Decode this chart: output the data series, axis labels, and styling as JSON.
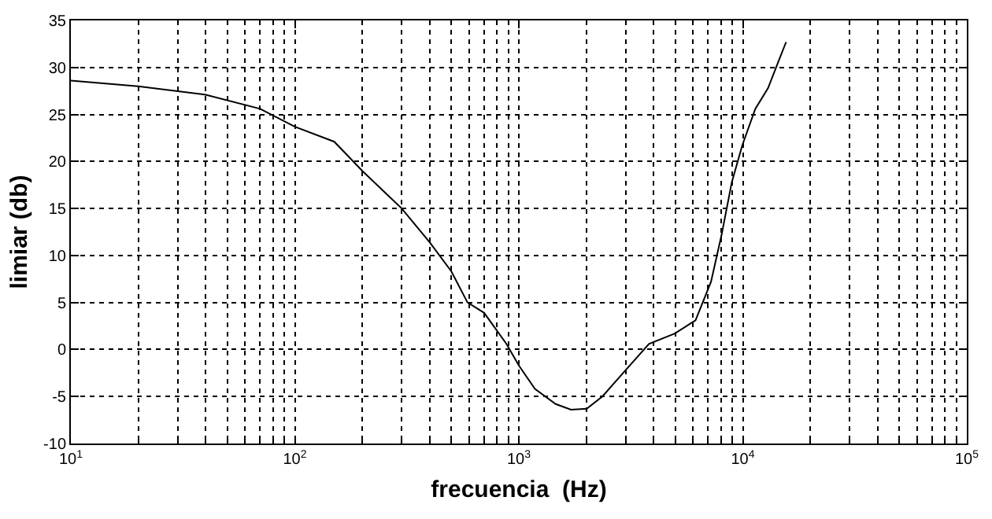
{
  "chart_data": {
    "type": "line",
    "xlabel": "frecuencia  (Hz)",
    "ylabel": "limiar (db)",
    "log": "x",
    "grid": true,
    "marker": "none",
    "line_style": "solid",
    "x": [
      10,
      20,
      40,
      70,
      100,
      150,
      200,
      300,
      400,
      500,
      590,
      700,
      880,
      1000,
      1180,
      1460,
      1710,
      2010,
      2360,
      2920,
      3810,
      4970,
      6150,
      7210,
      8040,
      8930,
      9940,
      11370,
      12960,
      14400,
      15600
    ],
    "series": [
      {
        "color": "#000000",
        "values": [
          28.6,
          28.0,
          27.1,
          25.6,
          23.7,
          22.1,
          19.0,
          15.0,
          11.4,
          8.3,
          5.0,
          3.9,
          0.6,
          -1.7,
          -4.2,
          -5.8,
          -6.4,
          -6.3,
          -5.0,
          -2.5,
          0.6,
          1.7,
          3.1,
          7.2,
          12.2,
          17.8,
          21.7,
          25.6,
          27.8,
          30.6,
          32.7
        ]
      }
    ],
    "xlim": [
      10,
      100000
    ],
    "ylim": [
      -10,
      35
    ],
    "xticks": [
      {
        "value": 10,
        "label": "10$^{1}$"
      },
      {
        "value": 100,
        "label": "10$^{2}$"
      },
      {
        "value": 1000,
        "label": "10$^{3}$"
      },
      {
        "value": 10000,
        "label": "10$^{4}$"
      },
      {
        "value": 100000,
        "label": "10$^{5}$"
      }
    ],
    "yticks": [
      -10,
      -5,
      0,
      5,
      10,
      15,
      20,
      25,
      30,
      35
    ]
  }
}
